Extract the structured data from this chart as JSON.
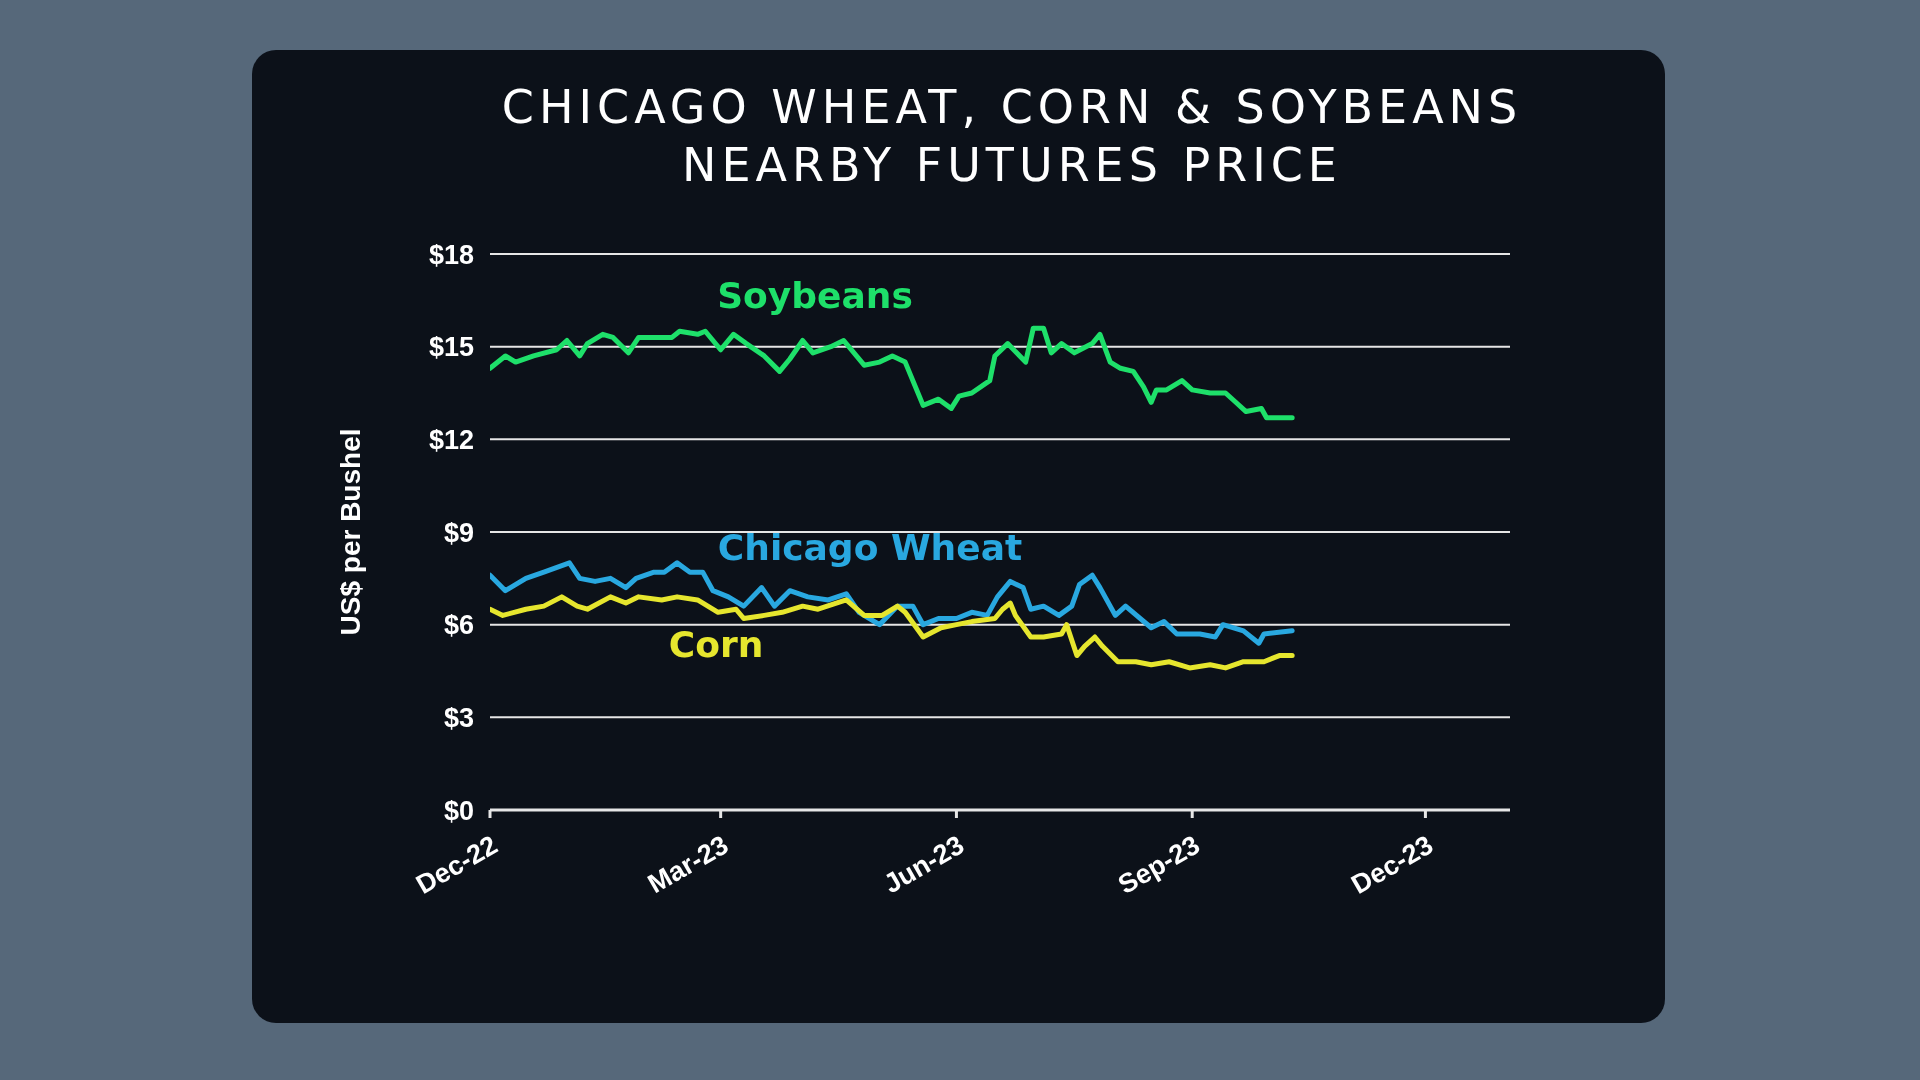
{
  "chart_data": {
    "type": "line",
    "title": "CHICAGO WHEAT, CORN & SOYBEANS\nNEARBY FUTURES PRICE",
    "ylabel": "US$ per Bushel",
    "legend": false,
    "grid": "y",
    "marker": "none",
    "line_style": "solid",
    "xlim": [
      "2022-12-01",
      "2024-01-03"
    ],
    "xticks": [
      {
        "value": "2022-12-01",
        "label": "Dec-22"
      },
      {
        "value": "2023-03-01",
        "label": "Mar-23"
      },
      {
        "value": "2023-06-01",
        "label": "Jun-23"
      },
      {
        "value": "2023-09-01",
        "label": "Sep-23"
      },
      {
        "value": "2023-12-01",
        "label": "Dec-23"
      }
    ],
    "ylim": [
      0,
      18
    ],
    "yticks": [
      {
        "value": 0,
        "label": "$0"
      },
      {
        "value": 3,
        "label": "$3"
      },
      {
        "value": 6,
        "label": "$6"
      },
      {
        "value": 9,
        "label": "$9"
      },
      {
        "value": 12,
        "label": "$12"
      },
      {
        "value": 15,
        "label": "$15"
      },
      {
        "value": 18,
        "label": "$18"
      }
    ],
    "series": [
      {
        "name": "Soybeans",
        "color": "#1ee06a",
        "x": [
          "2022-12-01",
          "2022-12-07",
          "2022-12-11",
          "2022-12-18",
          "2022-12-27",
          "2022-12-31",
          "2023-01-05",
          "2023-01-08",
          "2023-01-14",
          "2023-01-18",
          "2023-01-24",
          "2023-01-28",
          "2023-02-03",
          "2023-02-10",
          "2023-02-13",
          "2023-02-20",
          "2023-02-23",
          "2023-03-01",
          "2023-03-06",
          "2023-03-11",
          "2023-03-18",
          "2023-03-24",
          "2023-03-28",
          "2023-04-02",
          "2023-04-06",
          "2023-04-13",
          "2023-04-18",
          "2023-04-26",
          "2023-05-02",
          "2023-05-07",
          "2023-05-12",
          "2023-05-19",
          "2023-05-25",
          "2023-05-30",
          "2023-06-02",
          "2023-06-07",
          "2023-06-14",
          "2023-06-16",
          "2023-06-21",
          "2023-06-28",
          "2023-07-01",
          "2023-07-05",
          "2023-07-08",
          "2023-07-12",
          "2023-07-17",
          "2023-07-24",
          "2023-07-27",
          "2023-07-31",
          "2023-08-04",
          "2023-08-09",
          "2023-08-13",
          "2023-08-16",
          "2023-08-18",
          "2023-08-22",
          "2023-08-28",
          "2023-09-01",
          "2023-09-08",
          "2023-09-14",
          "2023-09-18",
          "2023-09-22",
          "2023-09-28",
          "2023-09-30",
          "2023-10-05",
          "2023-10-10"
        ],
        "values": [
          14.3,
          14.7,
          14.5,
          14.7,
          14.9,
          15.2,
          14.7,
          15.1,
          15.4,
          15.3,
          14.8,
          15.3,
          15.3,
          15.3,
          15.5,
          15.4,
          15.5,
          14.9,
          15.4,
          15.1,
          14.7,
          14.2,
          14.6,
          15.2,
          14.8,
          15.0,
          15.2,
          14.4,
          14.5,
          14.7,
          14.5,
          13.1,
          13.3,
          13.0,
          13.4,
          13.5,
          13.9,
          14.7,
          15.1,
          14.5,
          15.6,
          15.6,
          14.8,
          15.1,
          14.8,
          15.1,
          15.4,
          14.5,
          14.3,
          14.2,
          13.7,
          13.2,
          13.6,
          13.6,
          13.9,
          13.6,
          13.5,
          13.5,
          13.2,
          12.9,
          13.0,
          12.7,
          12.7,
          12.7
        ]
      },
      {
        "name": "Chicago Wheat",
        "color": "#29a8e0",
        "x": [
          "2022-12-01",
          "2022-12-07",
          "2022-12-15",
          "2022-12-22",
          "2023-01-01",
          "2023-01-05",
          "2023-01-11",
          "2023-01-17",
          "2023-01-23",
          "2023-01-27",
          "2023-02-03",
          "2023-02-07",
          "2023-02-12",
          "2023-02-17",
          "2023-02-22",
          "2023-02-26",
          "2023-03-04",
          "2023-03-10",
          "2023-03-17",
          "2023-03-22",
          "2023-03-28",
          "2023-04-04",
          "2023-04-12",
          "2023-04-19",
          "2023-04-24",
          "2023-05-02",
          "2023-05-09",
          "2023-05-15",
          "2023-05-19",
          "2023-05-25",
          "2023-06-01",
          "2023-06-07",
          "2023-06-13",
          "2023-06-17",
          "2023-06-22",
          "2023-06-27",
          "2023-06-30",
          "2023-07-05",
          "2023-07-11",
          "2023-07-16",
          "2023-07-19",
          "2023-07-24",
          "2023-07-27",
          "2023-08-02",
          "2023-08-06",
          "2023-08-16",
          "2023-08-21",
          "2023-08-26",
          "2023-09-04",
          "2023-09-10",
          "2023-09-13",
          "2023-09-21",
          "2023-09-27",
          "2023-09-29",
          "2023-10-10"
        ],
        "values": [
          7.6,
          7.1,
          7.5,
          7.7,
          8.0,
          7.5,
          7.4,
          7.5,
          7.2,
          7.5,
          7.7,
          7.7,
          8.0,
          7.7,
          7.7,
          7.1,
          6.9,
          6.6,
          7.2,
          6.6,
          7.1,
          6.9,
          6.8,
          7.0,
          6.4,
          6.0,
          6.6,
          6.6,
          6.0,
          6.2,
          6.2,
          6.4,
          6.3,
          6.9,
          7.4,
          7.2,
          6.5,
          6.6,
          6.3,
          6.6,
          7.3,
          7.6,
          7.2,
          6.3,
          6.6,
          5.9,
          6.1,
          5.7,
          5.7,
          5.6,
          6.0,
          5.8,
          5.4,
          5.7,
          5.8
        ]
      },
      {
        "name": "Corn",
        "color": "#e6e62e",
        "x": [
          "2022-12-01",
          "2022-12-06",
          "2022-12-15",
          "2022-12-22",
          "2022-12-29",
          "2023-01-04",
          "2023-01-08",
          "2023-01-17",
          "2023-01-23",
          "2023-01-28",
          "2023-02-06",
          "2023-02-12",
          "2023-02-20",
          "2023-02-28",
          "2023-03-07",
          "2023-03-10",
          "2023-03-18",
          "2023-03-25",
          "2023-04-02",
          "2023-04-08",
          "2023-04-19",
          "2023-04-26",
          "2023-05-03",
          "2023-05-09",
          "2023-05-12",
          "2023-05-19",
          "2023-05-26",
          "2023-06-01",
          "2023-06-07",
          "2023-06-16",
          "2023-06-19",
          "2023-06-22",
          "2023-06-24",
          "2023-06-30",
          "2023-07-05",
          "2023-07-12",
          "2023-07-14",
          "2023-07-18",
          "2023-07-21",
          "2023-07-25",
          "2023-07-28",
          "2023-08-03",
          "2023-08-10",
          "2023-08-16",
          "2023-08-23",
          "2023-08-31",
          "2023-09-08",
          "2023-09-14",
          "2023-09-21",
          "2023-09-29",
          "2023-10-05",
          "2023-10-10"
        ],
        "values": [
          6.5,
          6.3,
          6.5,
          6.6,
          6.9,
          6.6,
          6.5,
          6.9,
          6.7,
          6.9,
          6.8,
          6.9,
          6.8,
          6.4,
          6.5,
          6.2,
          6.3,
          6.4,
          6.6,
          6.5,
          6.8,
          6.3,
          6.3,
          6.6,
          6.4,
          5.6,
          5.9,
          6.0,
          6.1,
          6.2,
          6.5,
          6.7,
          6.3,
          5.6,
          5.6,
          5.7,
          6.0,
          5.0,
          5.3,
          5.6,
          5.3,
          4.8,
          4.8,
          4.7,
          4.8,
          4.6,
          4.7,
          4.6,
          4.8,
          4.8,
          5.0,
          5.0
        ]
      }
    ]
  }
}
